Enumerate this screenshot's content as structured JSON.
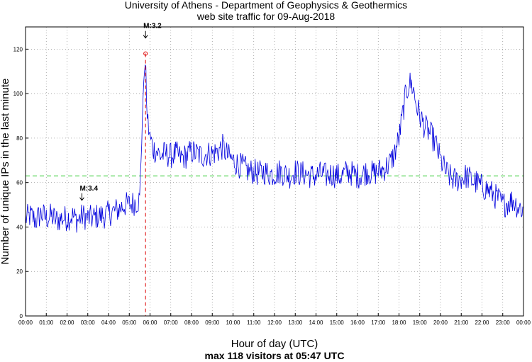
{
  "chart_data": {
    "type": "line",
    "title": "University of Athens - Department of Geophysics & Geothermics",
    "subtitle": "web site traffic for 09-Aug-2018",
    "xlabel": "Hour of day (UTC)",
    "xlabel_sub": "max 118 visitors at 05:47 UTC",
    "ylabel": "Number of unique IPs in the last minute",
    "xlim": [
      0,
      1440
    ],
    "ylim": [
      0,
      130
    ],
    "grid": true,
    "x_ticks": [
      "00:00",
      "01:00",
      "02:00",
      "03:00",
      "04:00",
      "05:00",
      "06:00",
      "07:00",
      "08:00",
      "09:00",
      "10:00",
      "11:00",
      "12:00",
      "13:00",
      "14:00",
      "15:00",
      "16:00",
      "17:00",
      "18:00",
      "19:00",
      "20:00",
      "21:00",
      "22:00",
      "23:00",
      "00:00"
    ],
    "y_ticks": [
      0,
      20,
      40,
      60,
      80,
      100,
      120
    ],
    "line_color": "#0000dd",
    "average_line": {
      "value": 63,
      "color": "#33cc33",
      "style": "dashed"
    },
    "max_marker": {
      "time": "05:47",
      "value": 118,
      "color": "#dd0000"
    },
    "events": [
      {
        "label": "M:3.4",
        "time": "02:43",
        "value": 52
      },
      {
        "label": "M:3.2",
        "time": "05:47",
        "value": 125
      }
    ],
    "series": [
      {
        "x": [
          "00:00",
          "00:15",
          "00:30",
          "00:45",
          "01:00",
          "01:15",
          "01:30",
          "01:45",
          "02:00",
          "02:15",
          "02:30",
          "02:45",
          "03:00",
          "03:15",
          "03:30",
          "03:45",
          "04:00",
          "04:15",
          "04:30",
          "04:45",
          "05:00",
          "05:15",
          "05:30",
          "05:40",
          "05:45",
          "05:47",
          "05:50",
          "05:55",
          "06:00",
          "06:10",
          "06:20",
          "06:30",
          "06:45",
          "07:00",
          "07:15",
          "07:30",
          "07:45",
          "08:00",
          "08:15",
          "08:30",
          "08:45",
          "09:00",
          "09:15",
          "09:30",
          "09:45",
          "10:00",
          "10:15",
          "10:30",
          "10:45",
          "11:00",
          "11:15",
          "11:30",
          "11:45",
          "12:00",
          "12:15",
          "12:30",
          "12:45",
          "13:00",
          "13:15",
          "13:30",
          "13:45",
          "14:00",
          "14:15",
          "14:30",
          "14:45",
          "15:00",
          "15:15",
          "15:30",
          "15:45",
          "16:00",
          "16:15",
          "16:30",
          "16:45",
          "17:00",
          "17:15",
          "17:30",
          "17:45",
          "18:00",
          "18:10",
          "18:20",
          "18:30",
          "18:40",
          "18:50",
          "19:00",
          "19:15",
          "19:30",
          "19:45",
          "20:00",
          "20:15",
          "20:30",
          "20:45",
          "21:00",
          "21:15",
          "21:30",
          "21:45",
          "22:00",
          "22:15",
          "22:30",
          "22:45",
          "23:00",
          "23:15",
          "23:30",
          "23:45",
          "23:59"
        ],
        "values": [
          44,
          45,
          43,
          46,
          44,
          45,
          43,
          44,
          44,
          45,
          43,
          45,
          44,
          44,
          45,
          45,
          46,
          47,
          48,
          50,
          50,
          51,
          52,
          100,
          110,
          118,
          95,
          85,
          80,
          75,
          74,
          72,
          73,
          72,
          73,
          71,
          72,
          74,
          73,
          72,
          73,
          73,
          74,
          76,
          72,
          70,
          68,
          67,
          65,
          65,
          64,
          65,
          64,
          64,
          65,
          64,
          63,
          65,
          64,
          64,
          63,
          63,
          64,
          63,
          64,
          63,
          63,
          65,
          64,
          63,
          64,
          65,
          64,
          65,
          66,
          68,
          72,
          80,
          90,
          100,
          105,
          103,
          95,
          90,
          85,
          82,
          78,
          70,
          65,
          62,
          61,
          62,
          63,
          61,
          60,
          58,
          57,
          55,
          53,
          50,
          51,
          52,
          49,
          48
        ]
      }
    ]
  }
}
